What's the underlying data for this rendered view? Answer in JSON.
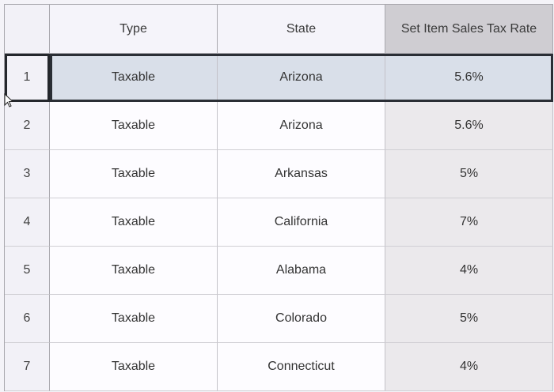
{
  "columns": [
    "",
    "Type",
    "State",
    "Set Item Sales Tax Rate"
  ],
  "rows": [
    {
      "num": "1",
      "type": "Taxable",
      "state": "Arizona",
      "rate": "5.6%",
      "selected": true
    },
    {
      "num": "2",
      "type": "Taxable",
      "state": "Arizona",
      "rate": "5.6%"
    },
    {
      "num": "3",
      "type": "Taxable",
      "state": "Arkansas",
      "rate": "5%"
    },
    {
      "num": "4",
      "type": "Taxable",
      "state": "California",
      "rate": "7%"
    },
    {
      "num": "5",
      "type": "Taxable",
      "state": "Alabama",
      "rate": "4%"
    },
    {
      "num": "6",
      "type": "Taxable",
      "state": "Colorado",
      "rate": "5%"
    },
    {
      "num": "7",
      "type": "Taxable",
      "state": "Connecticut",
      "rate": "4%"
    }
  ]
}
